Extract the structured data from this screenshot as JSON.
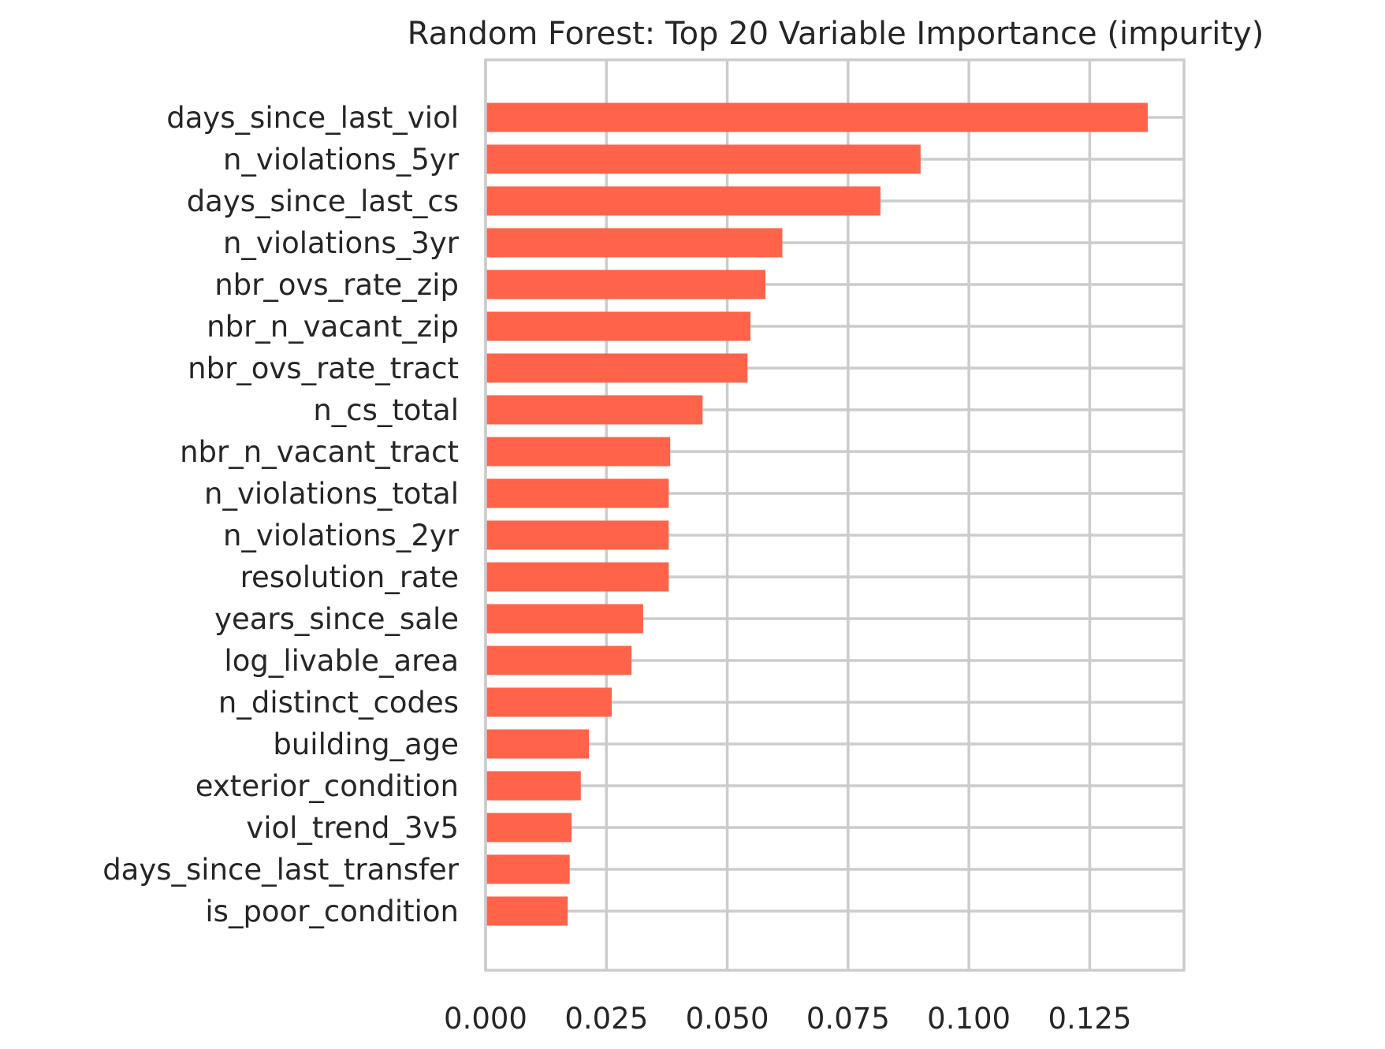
{
  "chart_data": {
    "type": "bar",
    "orientation": "horizontal",
    "title": "Random Forest: Top 20 Variable Importance (impurity)",
    "xlabel": "",
    "ylabel": "",
    "xlim": [
      0,
      0.1445
    ],
    "grid": true,
    "bar_color": "#ff634a",
    "grid_color": "#cccccc",
    "text_color": "#262626",
    "x_ticks": [
      0.0,
      0.025,
      0.05,
      0.075,
      0.1,
      0.125
    ],
    "x_tick_labels": [
      "0.000",
      "0.025",
      "0.050",
      "0.075",
      "0.100",
      "0.125"
    ],
    "categories": [
      "days_since_last_viol",
      "n_violations_5yr",
      "days_since_last_cs",
      "n_violations_3yr",
      "nbr_ovs_rate_zip",
      "nbr_n_vacant_zip",
      "nbr_ovs_rate_tract",
      "n_cs_total",
      "nbr_n_vacant_tract",
      "n_violations_total",
      "n_violations_2yr",
      "resolution_rate",
      "years_since_sale",
      "log_livable_area",
      "n_distinct_codes",
      "building_age",
      "exterior_condition",
      "viol_trend_3v5",
      "days_since_last_transfer",
      "is_poor_condition"
    ],
    "values": [
      0.137,
      0.09,
      0.0817,
      0.0614,
      0.0579,
      0.0548,
      0.0542,
      0.0449,
      0.0382,
      0.0379,
      0.0379,
      0.0379,
      0.0326,
      0.0302,
      0.0261,
      0.0214,
      0.0197,
      0.0178,
      0.0174,
      0.017
    ]
  }
}
